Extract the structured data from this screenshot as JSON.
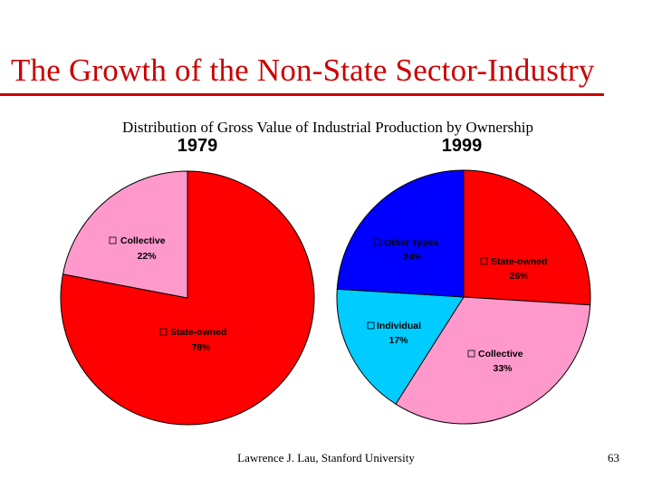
{
  "slide": {
    "title": "The Growth of the Non-State Sector-Industry",
    "footer": "Lawrence J. Lau, Stanford University",
    "page_number": "63",
    "accent_color": "#cc0000"
  },
  "chart_data": {
    "type": "pie",
    "title": "Distribution of Gross Value of Industrial Production by Ownership",
    "charts": [
      {
        "year": "1979",
        "slices": [
          {
            "name": "State-owned",
            "value": 78,
            "label": "78%",
            "color": "#ff0000"
          },
          {
            "name": "Collective",
            "value": 22,
            "label": "22%",
            "color": "#ff99cc"
          }
        ]
      },
      {
        "year": "1999",
        "slices": [
          {
            "name": "State-owned",
            "value": 26,
            "label": "26%",
            "color": "#ff0000"
          },
          {
            "name": "Collective",
            "value": 33,
            "label": "33%",
            "color": "#ff99cc"
          },
          {
            "name": "Individual",
            "value": 17,
            "label": "17%",
            "color": "#00ccff"
          },
          {
            "name": "Other Types",
            "value": 24,
            "label": "24%",
            "color": "#0000ff"
          }
        ]
      }
    ]
  }
}
